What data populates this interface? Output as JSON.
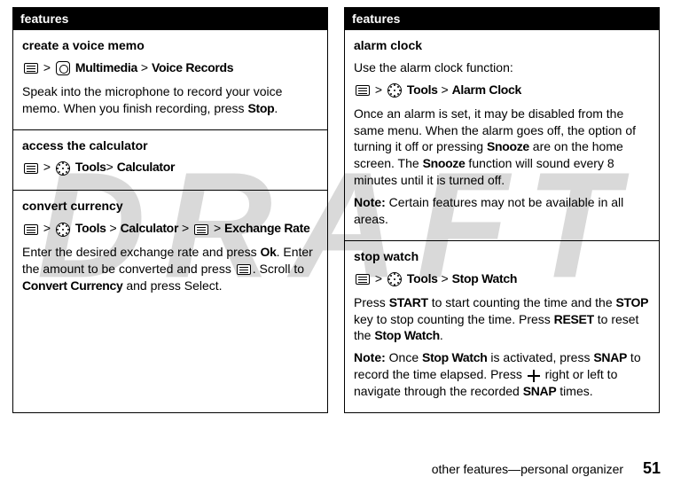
{
  "watermark": "DRAFT",
  "footer": {
    "section": "other features—personal organizer",
    "page": "51"
  },
  "left": {
    "header": "features",
    "cells": [
      {
        "title": "create a voice memo",
        "path_parts": [
          "Multimedia",
          "Voice Records"
        ],
        "body": "Speak into the microphone to record your voice memo. When you finish recording, press ",
        "body_bold_tail": "Stop",
        "body_tail2": "."
      },
      {
        "title": "access the calculator",
        "path_parts": [
          "Tools",
          "Calculator"
        ]
      },
      {
        "title": "convert currency",
        "path_parts": [
          "Tools",
          "Calculator",
          "Exchange Rate"
        ],
        "body1a": "Enter the desired exchange rate and press ",
        "body1_ok": "Ok",
        "body1b": ". Enter the amount to be converted and press ",
        "body1c": ". Scroll to ",
        "body1_cc": "Convert Currency",
        "body1d": " and press Select."
      }
    ]
  },
  "right": {
    "header": "features",
    "cells": [
      {
        "title": "alarm clock",
        "intro": "Use the alarm clock function:",
        "path_parts": [
          "Tools",
          "Alarm Clock"
        ],
        "body_a": "Once an alarm is set, it may be disabled from the same menu. When the alarm goes off, the option of turning it off or pressing ",
        "snooze": "Snooze",
        "body_b": " are on the home screen. The ",
        "body_c": " function will sound every 8 minutes until it is turned off.",
        "note_label": "Note:",
        "note_body": " Certain features may not be available in all areas."
      },
      {
        "title": "stop watch",
        "path_parts": [
          "Tools",
          "Stop Watch"
        ],
        "p1a": "Press ",
        "start": "START",
        "p1b": " to start counting the time and the ",
        "stop": "STOP",
        "p1c": " key to stop counting the time. Press ",
        "reset": "RESET",
        "p1d": " to reset the ",
        "sw": "Stop Watch",
        "p1e": ".",
        "note_label": "Note:",
        "n_a": " Once ",
        "n_b": " is activated, press ",
        "snap": "SNAP",
        "n_c": " to record the time elapsed. Press ",
        "n_d": " right or left to navigate through the recorded ",
        "n_e": " times."
      }
    ]
  }
}
